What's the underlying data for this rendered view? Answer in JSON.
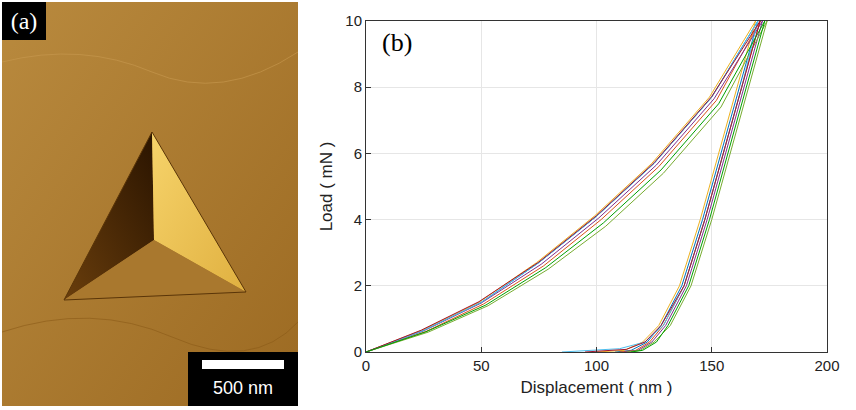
{
  "image_panel": {
    "label": "(a)",
    "scale_bar": "500 nm"
  },
  "chart_data": {
    "type": "line",
    "label": "(b)",
    "x_label": "Displacement ( nm )",
    "y_label": "Load ( mN )",
    "xlim": [
      0,
      200
    ],
    "xticks": [
      0,
      50,
      100,
      150,
      200
    ],
    "ylim": [
      0,
      10
    ],
    "yticks": [
      0,
      2,
      4,
      6,
      8,
      10
    ],
    "grid": true,
    "series": [
      {
        "color": "#0072BD",
        "x": [
          0,
          25,
          50,
          75,
          100,
          125,
          150,
          170,
          162,
          154,
          146,
          137,
          128,
          122,
          115,
          108
        ],
        "values": [
          0,
          0.65,
          1.5,
          2.7,
          4.1,
          5.7,
          7.7,
          10,
          8,
          6,
          4,
          2,
          0.8,
          0.3,
          0.05,
          0
        ]
      },
      {
        "color": "#D95319",
        "x": [
          0,
          26,
          51,
          77,
          102,
          127,
          152,
          171,
          163,
          155,
          147,
          138,
          129,
          123,
          117,
          110
        ],
        "values": [
          0,
          0.62,
          1.45,
          2.6,
          4.0,
          5.6,
          7.6,
          10,
          8,
          6,
          4,
          2,
          0.8,
          0.3,
          0.05,
          0
        ]
      },
      {
        "color": "#EDB120",
        "x": [
          0,
          24,
          49,
          74,
          99,
          124,
          149,
          169,
          161,
          153,
          145,
          136,
          127,
          120,
          112,
          100
        ],
        "values": [
          0,
          0.65,
          1.5,
          2.7,
          4.1,
          5.7,
          7.7,
          10,
          8,
          6,
          4,
          2,
          0.8,
          0.3,
          0.05,
          0
        ]
      },
      {
        "color": "#7E2F8E",
        "x": [
          0,
          25,
          50,
          76,
          101,
          126,
          151,
          172,
          164,
          156,
          148,
          139,
          130,
          124,
          118,
          112
        ],
        "values": [
          0,
          0.64,
          1.48,
          2.65,
          4.05,
          5.65,
          7.65,
          10,
          8,
          6,
          4,
          2,
          0.8,
          0.3,
          0.05,
          0
        ]
      },
      {
        "color": "#77AC30",
        "x": [
          0,
          27,
          53,
          79,
          104,
          129,
          154,
          174,
          166,
          158,
          150,
          141,
          132,
          125,
          119,
          113
        ],
        "values": [
          0,
          0.6,
          1.4,
          2.5,
          3.8,
          5.4,
          7.4,
          10,
          8,
          6,
          4,
          2,
          0.8,
          0.3,
          0.05,
          0
        ]
      },
      {
        "color": "#4DBEEE",
        "x": [
          0,
          25,
          50,
          75,
          100,
          125,
          150,
          170,
          163,
          155,
          147,
          138,
          129,
          121,
          110,
          85
        ],
        "values": [
          0,
          0.65,
          1.5,
          2.7,
          4.1,
          5.7,
          7.7,
          10,
          8,
          6,
          4,
          2,
          0.8,
          0.3,
          0.1,
          0
        ]
      },
      {
        "color": "#A2142F",
        "x": [
          0,
          24,
          49,
          75,
          100,
          125,
          150,
          171,
          163,
          155,
          147,
          138,
          128,
          121,
          113,
          95
        ],
        "values": [
          0,
          0.66,
          1.52,
          2.72,
          4.12,
          5.72,
          7.72,
          10,
          8,
          6,
          4,
          2,
          0.8,
          0.3,
          0.08,
          0
        ]
      },
      {
        "color": "#00A000",
        "x": [
          0,
          26,
          52,
          78,
          103,
          128,
          153,
          173,
          165,
          157,
          149,
          140,
          131,
          126,
          120,
          115
        ],
        "values": [
          0,
          0.61,
          1.42,
          2.55,
          3.9,
          5.5,
          7.5,
          10,
          8,
          6,
          4,
          2,
          0.8,
          0.3,
          0.05,
          0
        ]
      }
    ]
  }
}
